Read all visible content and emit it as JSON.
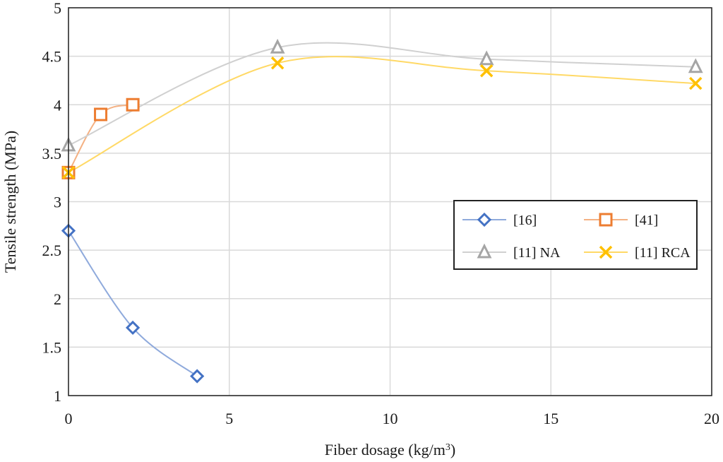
{
  "chart_data": {
    "type": "line",
    "xlabel": "Fiber dosage (kg/m",
    "xlabel_sup": "3",
    "xlabel_suffix": ")",
    "ylabel": "Tensile strength (MPa)",
    "xlim": [
      0,
      20
    ],
    "ylim": [
      1,
      5
    ],
    "xticks": [
      0,
      5,
      10,
      15,
      20
    ],
    "yticks": [
      1,
      1.5,
      2,
      2.5,
      3,
      3.5,
      4,
      4.5,
      5
    ],
    "xtick_labels": [
      "0",
      "5",
      "10",
      "15",
      "20"
    ],
    "ytick_labels": [
      "1",
      "1.5",
      "2",
      "2.5",
      "3",
      "3.5",
      "4",
      "4.5",
      "5"
    ],
    "grid": true,
    "legend_position": "center-right",
    "series": [
      {
        "name": "[16]",
        "marker": "diamond",
        "color": "#4472C4",
        "line_color": "#8FAADC",
        "x": [
          0,
          2,
          4
        ],
        "y": [
          2.7,
          1.7,
          1.2
        ]
      },
      {
        "name": "[41]",
        "marker": "square",
        "color": "#ED7D31",
        "line_color": "#F4B183",
        "x": [
          0,
          1,
          2
        ],
        "y": [
          3.3,
          3.9,
          4.0
        ]
      },
      {
        "name": "[11] NA",
        "marker": "triangle",
        "color": "#A5A5A5",
        "line_color": "#D0D0D0",
        "x": [
          0,
          6.5,
          13,
          19.5
        ],
        "y": [
          3.58,
          4.59,
          4.47,
          4.39
        ]
      },
      {
        "name": "[11] RCA",
        "marker": "x",
        "color": "#FFC000",
        "line_color": "#FFD966",
        "x": [
          0,
          6.5,
          13,
          19.5
        ],
        "y": [
          3.3,
          4.43,
          4.35,
          4.22
        ]
      }
    ]
  }
}
